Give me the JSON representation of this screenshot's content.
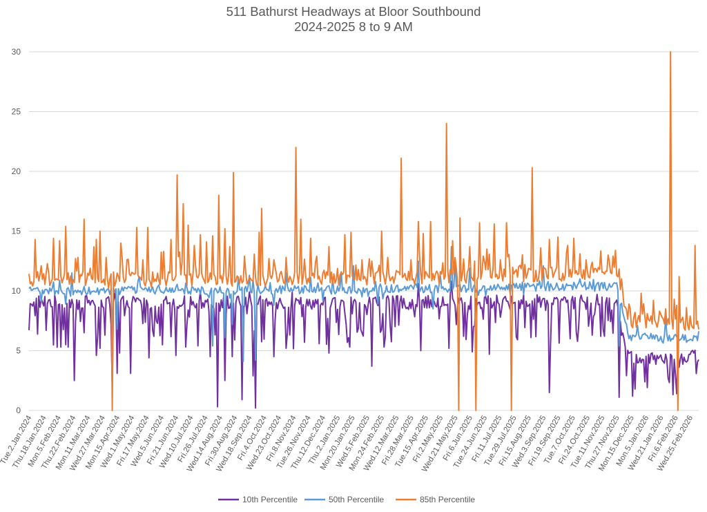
{
  "chart_data": {
    "type": "line",
    "title": "511 Bathurst Headways at Bloor Southbound",
    "subtitle": "2024-2025 8 to 9 AM",
    "ylim": [
      0,
      30
    ],
    "yticks": [
      0,
      5,
      10,
      15,
      20,
      25,
      30
    ],
    "grid": true,
    "legend_position": "bottom",
    "x_tick_labels": [
      "Tue.2.Jan.2024",
      "Thu.18.Jan.2024",
      "Mon.5.Feb.2024",
      "Thu.22.Feb.2024",
      "Mon.11.Mar.2024",
      "Wed.27.Mar.2024",
      "Mon.15.Apr.2024",
      "Wed.1.May.2024",
      "Fri.17.May.2024",
      "Wed.5.Jun.2024",
      "Fri.21.Jun.2024",
      "Wed.10.Jul.2024",
      "Fri.26.Jul.2024",
      "Wed.14.Aug.2024",
      "Fri.30.Aug.2024",
      "Wed.18.Sep.2024",
      "Fri.4.Oct.2024",
      "Wed.23.Oct.2024",
      "Fri.8.Nov.2024",
      "Tue.26.Nov.2024",
      "Thu.12.Dec.2024",
      "Thu.2.Jan.2025",
      "Mon.20.Jan.2025",
      "Wed.5.Feb.2025",
      "Mon.24.Feb.2025",
      "Wed.12.Mar.2025",
      "Fri.28.Mar.2025",
      "Tue.15.Apr.2025",
      "Fri.2.May.2025",
      "Wed.21.May.2025",
      "Fri.6.Jun.2025",
      "Tue.24.Jun.2025",
      "Fri.11.Jul.2025",
      "Tue.29.Jul.2025",
      "Fri.15.Aug.2025",
      "Wed.3.Sep.2025",
      "Fri.19.Sep.2025",
      "Tue.7.Oct.2025",
      "Fri.24.Oct.2025",
      "Tue.11.Nov.2025",
      "Thu.27.Nov.2025",
      "Mon.15.Dec.2025",
      "Mon.5.Jan.2026",
      "Wed.21.Jan.2026",
      "Fri.6.Feb.2026",
      "Wed.25.Feb.2026"
    ],
    "x_tick_index_step": 12,
    "num_points": 548,
    "series": [
      {
        "name": "10th Percentile",
        "color": "#7030A0",
        "baseline_segments": [
          [
            0,
            9.1
          ],
          [
            250,
            9.0
          ],
          [
            480,
            9.2
          ],
          [
            490,
            4.4
          ],
          [
            547,
            4.6
          ]
        ],
        "dips": [
          [
            26,
            5.3
          ],
          [
            30,
            5.5
          ],
          [
            32,
            5.3
          ],
          [
            37,
            2.5
          ],
          [
            45,
            6.5
          ],
          [
            55,
            4.6
          ],
          [
            58,
            5.2
          ],
          [
            62,
            6.3
          ],
          [
            68,
            1.9
          ],
          [
            72,
            3.1
          ],
          [
            74,
            4.8
          ],
          [
            83,
            3.1
          ],
          [
            98,
            4.4
          ],
          [
            120,
            4.6
          ],
          [
            128,
            5.3
          ],
          [
            138,
            5.4
          ],
          [
            148,
            4.5
          ],
          [
            154,
            0.3
          ],
          [
            160,
            2.5
          ],
          [
            166,
            4.5
          ],
          [
            174,
            0.9
          ],
          [
            183,
            2.9
          ],
          [
            185,
            0.2
          ],
          [
            200,
            4.5
          ],
          [
            210,
            5.2
          ],
          [
            225,
            5.7
          ],
          [
            245,
            4.8
          ],
          [
            262,
            5.3
          ],
          [
            280,
            3.7
          ],
          [
            290,
            5.3
          ],
          [
            320,
            5.0
          ],
          [
            343,
            5.2
          ],
          [
            355,
            6.2
          ],
          [
            362,
            4.9
          ],
          [
            376,
            4.7
          ],
          [
            410,
            6.1
          ],
          [
            425,
            1.5
          ],
          [
            442,
            6.0
          ],
          [
            460,
            6.3
          ],
          [
            470,
            6.2
          ],
          [
            482,
            1.1
          ],
          [
            522,
            2.7
          ],
          [
            529,
            1.4
          ]
        ],
        "peaks": [
          [
            70,
            9.8
          ],
          [
            140,
            10.0
          ],
          [
            180,
            9.9
          ],
          [
            215,
            9.9
          ],
          [
            318,
            10.6
          ],
          [
            345,
            10.8
          ]
        ]
      },
      {
        "name": "50th Percentile",
        "color": "#5B9BD5",
        "baseline_segments": [
          [
            0,
            10.0
          ],
          [
            250,
            10.1
          ],
          [
            480,
            10.4
          ],
          [
            490,
            6.1
          ],
          [
            520,
            6.1
          ],
          [
            547,
            6.0
          ]
        ],
        "dips": [
          [
            30,
            8.9
          ],
          [
            68,
            6.0
          ],
          [
            72,
            6.8
          ],
          [
            150,
            5.4
          ],
          [
            160,
            6.1
          ],
          [
            166,
            7.2
          ],
          [
            175,
            4.1
          ],
          [
            185,
            4.2
          ],
          [
            200,
            8.8
          ],
          [
            240,
            9.2
          ],
          [
            285,
            8.9
          ],
          [
            330,
            8.5
          ],
          [
            420,
            7.8
          ],
          [
            482,
            5.4
          ]
        ],
        "peaks": [
          [
            35,
            11.5
          ],
          [
            90,
            11.2
          ],
          [
            180,
            11.3
          ],
          [
            210,
            11.5
          ],
          [
            255,
            11.6
          ],
          [
            265,
            12.1
          ],
          [
            318,
            12.5
          ],
          [
            345,
            13.7
          ],
          [
            348,
            12.6
          ],
          [
            360,
            11.9
          ],
          [
            420,
            12.1
          ],
          [
            520,
            7.7
          ]
        ]
      },
      {
        "name": "85th Percentile",
        "color": "#ED7D31",
        "baseline_segments": [
          [
            0,
            11.0
          ],
          [
            250,
            11.0
          ],
          [
            480,
            11.5
          ],
          [
            490,
            7.5
          ],
          [
            520,
            7.4
          ],
          [
            547,
            7.2
          ]
        ],
        "dips": [
          [
            65,
            10.2
          ],
          [
            68,
            0.0
          ],
          [
            100,
            10.3
          ],
          [
            200,
            10.0
          ],
          [
            280,
            10.1
          ],
          [
            351,
            0.0
          ],
          [
            365,
            0.0
          ],
          [
            394,
            0.0
          ],
          [
            530,
            0.0
          ]
        ],
        "peaks": [
          [
            5,
            14.3
          ],
          [
            10,
            12.1
          ],
          [
            20,
            14.4
          ],
          [
            25,
            14.2
          ],
          [
            30,
            15.4
          ],
          [
            38,
            12.7
          ],
          [
            40,
            12.8
          ],
          [
            45,
            16.0
          ],
          [
            50,
            11.9
          ],
          [
            55,
            14.3
          ],
          [
            58,
            15.0
          ],
          [
            63,
            12.8
          ],
          [
            75,
            14.0
          ],
          [
            80,
            12.6
          ],
          [
            88,
            15.3
          ],
          [
            93,
            12.6
          ],
          [
            97,
            15.3
          ],
          [
            110,
            13.3
          ],
          [
            116,
            14.3
          ],
          [
            121,
            19.7
          ],
          [
            126,
            17.3
          ],
          [
            130,
            15.5
          ],
          [
            135,
            13.8
          ],
          [
            140,
            14.7
          ],
          [
            145,
            14.1
          ],
          [
            150,
            14.6
          ],
          [
            155,
            18.0
          ],
          [
            160,
            15.2
          ],
          [
            164,
            13.7
          ],
          [
            167,
            19.9
          ],
          [
            176,
            12.9
          ],
          [
            188,
            14.9
          ],
          [
            190,
            16.9
          ],
          [
            200,
            12.6
          ],
          [
            210,
            12.8
          ],
          [
            218,
            22.0
          ],
          [
            222,
            16.0
          ],
          [
            230,
            14.4
          ],
          [
            235,
            12.9
          ],
          [
            245,
            13.7
          ],
          [
            258,
            14.7
          ],
          [
            263,
            14.9
          ],
          [
            272,
            12.6
          ],
          [
            280,
            12.5
          ],
          [
            288,
            15.0
          ],
          [
            293,
            12.8
          ],
          [
            304,
            21.1
          ],
          [
            312,
            12.6
          ],
          [
            318,
            15.8
          ],
          [
            322,
            14.8
          ],
          [
            328,
            15.8
          ],
          [
            341,
            24.0
          ],
          [
            346,
            14.2
          ],
          [
            352,
            16.1
          ],
          [
            360,
            13.7
          ],
          [
            368,
            15.7
          ],
          [
            374,
            13.5
          ],
          [
            380,
            15.6
          ],
          [
            385,
            12.6
          ],
          [
            390,
            15.7
          ],
          [
            405,
            12.2
          ],
          [
            411,
            20.3
          ],
          [
            418,
            13.6
          ],
          [
            425,
            14.3
          ],
          [
            432,
            14.5
          ],
          [
            440,
            13.8
          ],
          [
            445,
            14.4
          ],
          [
            450,
            13.1
          ],
          [
            455,
            12.6
          ],
          [
            460,
            12.4
          ],
          [
            466,
            11.8
          ],
          [
            473,
            13.0
          ],
          [
            490,
            8.9
          ],
          [
            495,
            8.2
          ],
          [
            500,
            9.8
          ],
          [
            505,
            8.1
          ],
          [
            510,
            9.2
          ],
          [
            515,
            8.3
          ],
          [
            520,
            8.5
          ],
          [
            524,
            30.0
          ],
          [
            527,
            9.3
          ],
          [
            531,
            11.2
          ],
          [
            540,
            7.9
          ],
          [
            544,
            13.8
          ]
        ]
      }
    ]
  }
}
